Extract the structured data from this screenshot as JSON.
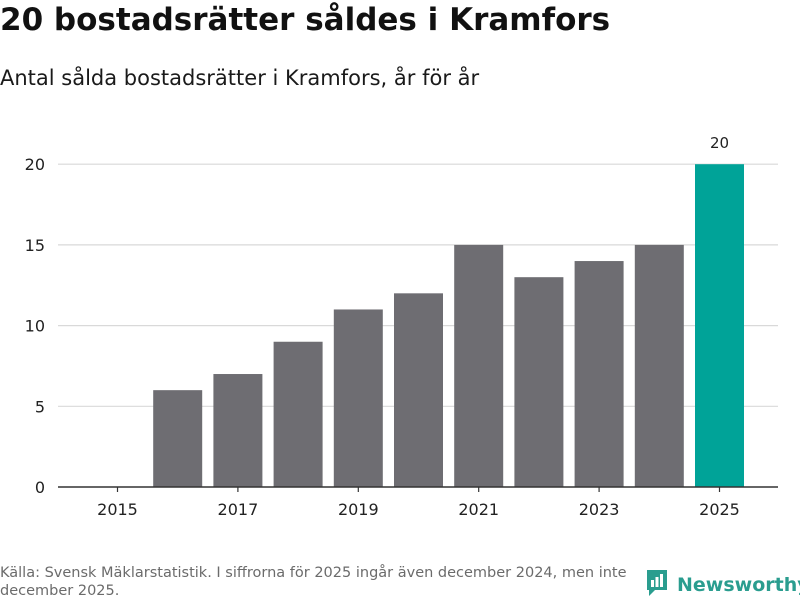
{
  "header": {
    "title": "20 bostadsrätter såldes i Kramfors",
    "subtitle": "Antal sålda bostadsrätter i Kramfors, år för år"
  },
  "chart_data": {
    "type": "bar",
    "title": "20 bostadsrätter såldes i Kramfors",
    "subtitle": "Antal sålda bostadsrätter i Kramfors, år för år",
    "categories": [
      "2015",
      "2016",
      "2017",
      "2018",
      "2019",
      "2020",
      "2021",
      "2022",
      "2023",
      "2024",
      "2025"
    ],
    "values": [
      0,
      6,
      7,
      9,
      11,
      12,
      15,
      13,
      14,
      15,
      20
    ],
    "x_tick_labels": [
      "2015",
      "2017",
      "2019",
      "2021",
      "2023",
      "2025"
    ],
    "y_ticks": [
      0,
      5,
      10,
      15,
      20
    ],
    "ylim": [
      0,
      21.5
    ],
    "xlabel": "",
    "ylabel": "",
    "grid": true,
    "highlight_category": "2025",
    "data_labels": [
      {
        "category": "2025",
        "text": "20"
      }
    ],
    "colors": {
      "bar": "#6e6d72",
      "highlight": "#00a398",
      "grid": "#d9d9d9",
      "axis": "#333333"
    }
  },
  "footer": {
    "source": "Källa: Svensk Mäklarstatistik. I siffrorna för 2025 ingår även december 2024, men inte december 2025.",
    "logo_text": "Newsworthy",
    "logo_icon": "newsworthy-logo-icon",
    "logo_color": "#2a9d8f"
  }
}
